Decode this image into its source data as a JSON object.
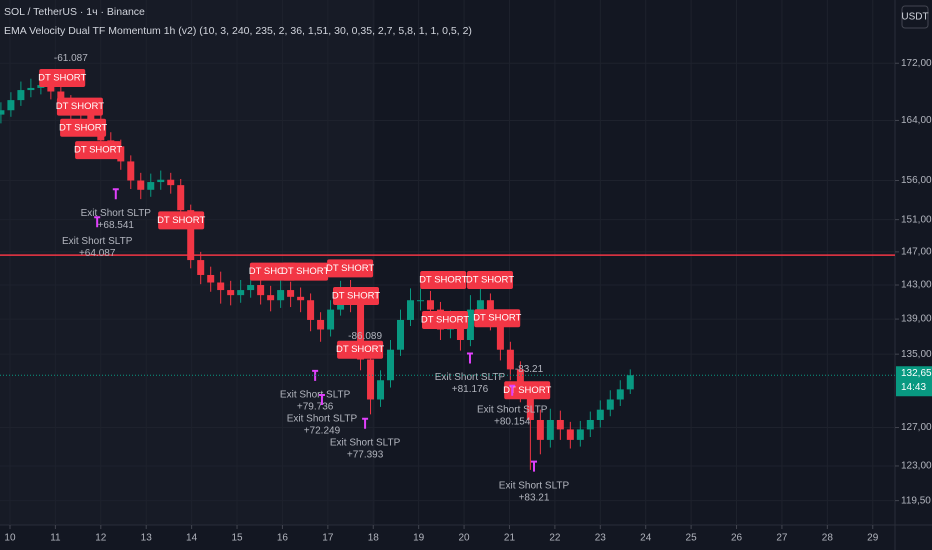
{
  "chart_data": {
    "type": "candlestick",
    "title": "SOL / TetherUS · 1ч · Binance",
    "subtitle": "EMA Velocity Dual TF Momentum 1h (v2) (10, 3, 240, 235, 2, 36, 1,51, 30, 0,35, 2,7, 5,8, 1, 1, 0,5, 2)",
    "currency": "USDT",
    "x": [
      9.8,
      10.02,
      10.24,
      10.46,
      10.68,
      10.9,
      11.12,
      11.34,
      11.56,
      11.78,
      12,
      12.22,
      12.44,
      12.66,
      12.88,
      13.1,
      13.32,
      13.54,
      13.76,
      13.98,
      14.2,
      14.42,
      14.64,
      14.86,
      15.08,
      15.3,
      15.52,
      15.74,
      15.96,
      16.18,
      16.4,
      16.62,
      16.84,
      17.06,
      17.28,
      17.5,
      17.72,
      17.94,
      18.16,
      18.38,
      18.6,
      18.82,
      19.04,
      19.26,
      19.48,
      19.7,
      19.92,
      20.14,
      20.36,
      20.58,
      20.8,
      21.02,
      21.24,
      21.46,
      21.68,
      21.9,
      22.12,
      22.34,
      22.56,
      22.78,
      23,
      23.22,
      23.44,
      23.66
    ],
    "open": [
      164.8,
      165.4,
      166.8,
      168.2,
      168.5,
      168.9,
      168.0,
      166.5,
      165.4,
      164.7,
      164.0,
      161.3,
      160.5,
      158.5,
      156.0,
      154.8,
      155.8,
      156.1,
      155.4,
      152.2,
      146.0,
      144.2,
      143.3,
      142.4,
      141.8,
      142.4,
      143.0,
      141.8,
      141.2,
      142.4,
      141.6,
      141.2,
      138.9,
      137.8,
      140.1,
      142.4,
      141.2,
      134.4,
      130.0,
      132.1,
      135.5,
      138.9,
      141.2,
      141.2,
      140.1,
      137.8,
      138.9,
      136.6,
      140.1,
      141.2,
      138.9,
      135.5,
      133.3,
      131.1,
      127.8,
      125.7,
      127.8,
      126.8,
      125.7,
      126.8,
      127.8,
      128.9,
      130.0,
      131.1
    ],
    "high": [
      166.5,
      167.9,
      169.4,
      169.8,
      170.3,
      169.9,
      169.0,
      167.5,
      166.4,
      165.8,
      164.9,
      162.4,
      161.4,
      159.3,
      157.0,
      156.9,
      157.3,
      157.0,
      156.2,
      152.9,
      147.0,
      145.2,
      144.6,
      143.5,
      143.6,
      144.3,
      144.0,
      142.9,
      143.6,
      143.4,
      142.7,
      142.0,
      139.8,
      141.2,
      143.5,
      143.6,
      141.8,
      135.1,
      133.2,
      136.6,
      140.1,
      142.6,
      142.6,
      142.3,
      141.0,
      140.0,
      139.8,
      141.8,
      142.9,
      142.0,
      139.6,
      136.4,
      134.2,
      131.9,
      128.9,
      129.0,
      128.8,
      127.6,
      127.7,
      128.7,
      129.9,
      131.0,
      132.1,
      133.3
    ],
    "low": [
      163.6,
      164.5,
      166.0,
      167.2,
      167.6,
      166.9,
      165.4,
      164.2,
      163.5,
      162.6,
      160.2,
      159.3,
      157.4,
      154.9,
      153.6,
      153.9,
      154.8,
      154.3,
      151.0,
      145.0,
      143.1,
      142.2,
      140.8,
      140.6,
      140.9,
      141.5,
      140.7,
      139.9,
      140.3,
      140.4,
      139.8,
      137.6,
      136.4,
      137.0,
      139.4,
      139.8,
      133.2,
      128.4,
      129.2,
      131.3,
      134.8,
      138.2,
      140.0,
      138.9,
      136.6,
      136.8,
      135.4,
      135.9,
      139.3,
      137.7,
      134.3,
      132.1,
      129.7,
      122.6,
      124.2,
      124.9,
      125.7,
      124.8,
      125.0,
      126.0,
      127.0,
      128.2,
      129.3,
      130.6
    ],
    "close": [
      165.4,
      166.8,
      168.2,
      168.5,
      168.9,
      168.0,
      166.5,
      165.4,
      164.7,
      164.0,
      161.3,
      160.5,
      158.5,
      156.0,
      154.8,
      155.8,
      156.1,
      155.4,
      152.2,
      146.0,
      144.2,
      143.3,
      142.4,
      141.8,
      142.4,
      143.0,
      141.8,
      141.2,
      142.4,
      141.6,
      141.2,
      138.9,
      137.8,
      140.1,
      142.4,
      141.2,
      134.4,
      130.0,
      132.1,
      135.5,
      138.9,
      141.2,
      141.2,
      140.1,
      137.8,
      138.9,
      136.6,
      140.1,
      141.2,
      138.9,
      135.5,
      133.3,
      131.1,
      127.8,
      125.7,
      127.8,
      126.8,
      125.7,
      126.8,
      127.8,
      128.9,
      130.0,
      131.1,
      132.65
    ],
    "up_color": "#089981",
    "down_color": "#f23645",
    "xlim": [
      9.78,
      29.49
    ],
    "ylim": [
      117.1,
      181.3
    ],
    "log_y": true,
    "grid": true,
    "xticks": [
      10,
      11,
      12,
      13,
      14,
      15,
      16,
      17,
      18,
      19,
      20,
      21,
      22,
      23,
      24,
      25,
      26,
      27,
      28,
      29
    ],
    "yticks": [
      {
        "value": 172,
        "label": "172,00"
      },
      {
        "value": 164,
        "label": "164,00"
      },
      {
        "value": 156,
        "label": "156,00"
      },
      {
        "value": 151,
        "label": "151,00"
      },
      {
        "value": 147,
        "label": "147,00"
      },
      {
        "value": 143,
        "label": "143,00"
      },
      {
        "value": 139,
        "label": "139,00"
      },
      {
        "value": 135,
        "label": "135,00"
      },
      {
        "value": 127,
        "label": "127,00"
      },
      {
        "value": 123,
        "label": "123,00"
      },
      {
        "value": 119.5,
        "label": "119,50"
      }
    ],
    "hline": {
      "value": 146.6,
      "color": "#f23645"
    },
    "last_price": {
      "value": 132.65,
      "label": "132,65"
    },
    "countdown": "14:43",
    "signals": [
      {
        "label": "DT SHORT",
        "x": 11.15,
        "y": 169.9
      },
      {
        "label": "DT SHORT",
        "x": 11.54,
        "y": 165.9
      },
      {
        "label": "DT SHORT",
        "x": 11.61,
        "y": 163.0
      },
      {
        "label": "DT SHORT",
        "x": 11.94,
        "y": 160.0
      },
      {
        "label": "DT SHORT",
        "x": 13.77,
        "y": 150.9
      },
      {
        "label": "DT SHORT",
        "x": 15.79,
        "y": 144.6
      },
      {
        "label": "DT SHORT",
        "x": 16.5,
        "y": 144.6
      },
      {
        "label": "DT SHORT",
        "x": 17.49,
        "y": 145.0
      },
      {
        "label": "DT SHORT",
        "x": 17.62,
        "y": 141.7
      },
      {
        "label": "DT SHORT",
        "x": 17.71,
        "y": 135.5
      },
      {
        "label": "DT SHORT",
        "x": 19.54,
        "y": 143.6
      },
      {
        "label": "DT SHORT",
        "x": 20.57,
        "y": 143.6
      },
      {
        "label": "DT SHORT",
        "x": 19.58,
        "y": 138.9
      },
      {
        "label": "DT SHORT",
        "x": 20.73,
        "y": 139.1
      },
      {
        "label": "DT SHORT",
        "x": 21.39,
        "y": 131.0
      }
    ],
    "exits": [
      {
        "label": "Exit Short SLTP",
        "pnl": "+68.541",
        "x": 12.33,
        "y": 151.8
      },
      {
        "label": "Exit Short SLTP",
        "pnl": "+64.087",
        "x": 11.92,
        "y": 148.3
      },
      {
        "label": "Exit Short SLTP",
        "pnl": "+79.736",
        "x": 16.72,
        "y": 130.5
      },
      {
        "label": "Exit Short SLTP",
        "pnl": "+72.249",
        "x": 16.87,
        "y": 127.9
      },
      {
        "label": "Exit Short SLTP",
        "pnl": "+77.393",
        "x": 17.82,
        "y": 125.4
      },
      {
        "label": "Exit Short SLTP",
        "pnl": "+81.176",
        "x": 20.13,
        "y": 132.4
      },
      {
        "label": "Exit Short SLTP",
        "pnl": "+80.154",
        "x": 21.06,
        "y": 128.9
      },
      {
        "label": "Exit Short SLTP",
        "pnl": "+83.21",
        "x": 21.54,
        "y": 121.0
      }
    ],
    "notes": [
      {
        "text": "-61.087",
        "x": 11.34,
        "y": 172.7
      },
      {
        "text": "-83.21",
        "x": 21.43,
        "y": 133.3
      },
      {
        "text": "-86.089",
        "x": 17.82,
        "y": 137.0
      }
    ]
  }
}
